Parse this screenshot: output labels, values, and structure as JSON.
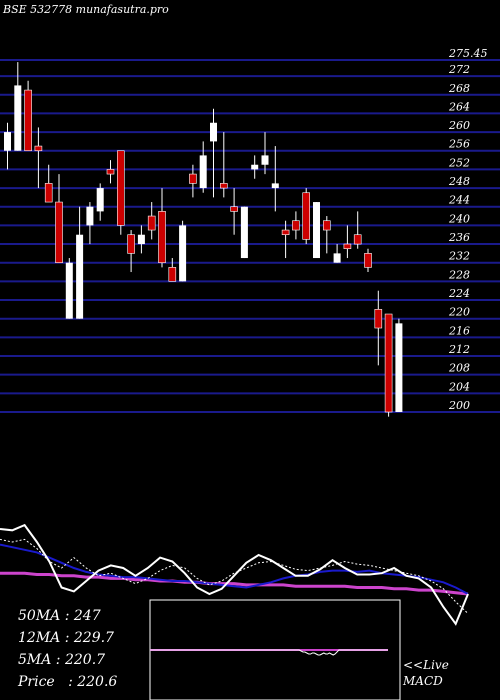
{
  "chart_data": {
    "type": "candlestick",
    "title": "BSE 532778 munafasutra.pro",
    "y_ticks": [
      "275.45",
      "272",
      "268",
      "264",
      "260",
      "256",
      "252",
      "248",
      "244",
      "240",
      "236",
      "232",
      "228",
      "224",
      "220",
      "216",
      "212",
      "208",
      "204",
      "200"
    ],
    "ylim": [
      200,
      275.45
    ],
    "candles": [
      {
        "open": 260,
        "close": 256,
        "high": 262,
        "low": 252,
        "color": "white"
      },
      {
        "open": 270,
        "close": 256,
        "high": 275,
        "low": 256,
        "color": "white"
      },
      {
        "open": 269,
        "close": 256,
        "high": 271,
        "low": 256,
        "color": "red"
      },
      {
        "open": 257,
        "close": 256,
        "high": 261,
        "low": 248,
        "color": "red"
      },
      {
        "open": 249,
        "close": 245,
        "high": 253,
        "low": 245,
        "color": "red"
      },
      {
        "open": 245,
        "close": 232,
        "high": 251,
        "low": 232,
        "color": "red"
      },
      {
        "open": 232,
        "close": 220,
        "high": 233,
        "low": 220,
        "color": "white"
      },
      {
        "open": 238,
        "close": 220,
        "high": 244,
        "low": 220,
        "color": "white"
      },
      {
        "open": 244,
        "close": 240,
        "high": 245,
        "low": 236,
        "color": "white"
      },
      {
        "open": 248,
        "close": 243,
        "high": 249,
        "low": 241,
        "color": "white"
      },
      {
        "open": 252,
        "close": 251,
        "high": 254,
        "low": 249,
        "color": "red"
      },
      {
        "open": 256,
        "close": 240,
        "high": 256,
        "low": 238,
        "color": "red"
      },
      {
        "open": 238,
        "close": 234,
        "high": 239,
        "low": 230,
        "color": "red"
      },
      {
        "open": 238,
        "close": 236,
        "high": 240,
        "low": 234,
        "color": "white"
      },
      {
        "open": 242,
        "close": 239,
        "high": 245,
        "low": 237,
        "color": "red"
      },
      {
        "open": 243,
        "close": 232,
        "high": 248,
        "low": 231,
        "color": "red"
      },
      {
        "open": 231,
        "close": 228,
        "high": 233,
        "low": 228,
        "color": "red"
      },
      {
        "open": 228,
        "close": 240,
        "high": 241,
        "low": 228,
        "color": "white"
      },
      {
        "open": 251,
        "close": 249,
        "high": 253,
        "low": 246,
        "color": "red"
      },
      {
        "open": 255,
        "close": 248,
        "high": 258,
        "low": 247,
        "color": "white"
      },
      {
        "open": 258,
        "close": 262,
        "high": 265,
        "low": 246,
        "color": "white"
      },
      {
        "open": 249,
        "close": 248,
        "high": 260,
        "low": 246,
        "color": "red"
      },
      {
        "open": 244,
        "close": 243,
        "high": 248,
        "low": 238,
        "color": "red"
      },
      {
        "open": 233,
        "close": 244,
        "high": 244,
        "low": 233,
        "color": "white"
      },
      {
        "open": 253,
        "close": 252,
        "high": 255,
        "low": 250,
        "color": "white"
      },
      {
        "open": 253,
        "close": 255,
        "high": 260,
        "low": 251,
        "color": "white"
      },
      {
        "open": 248,
        "close": 249,
        "high": 257,
        "low": 243,
        "color": "white"
      },
      {
        "open": 239,
        "close": 238,
        "high": 241,
        "low": 233,
        "color": "red"
      },
      {
        "open": 241,
        "close": 239,
        "high": 243,
        "low": 237,
        "color": "red"
      },
      {
        "open": 247,
        "close": 237,
        "high": 248,
        "low": 236,
        "color": "red"
      },
      {
        "open": 245,
        "close": 233,
        "high": 245,
        "low": 233,
        "color": "white"
      },
      {
        "open": 241,
        "close": 239,
        "high": 242,
        "low": 234,
        "color": "red"
      },
      {
        "open": 234,
        "close": 232,
        "high": 236,
        "low": 232,
        "color": "white"
      },
      {
        "open": 236,
        "close": 235,
        "high": 240,
        "low": 233,
        "color": "red"
      },
      {
        "open": 238,
        "close": 236,
        "high": 243,
        "low": 235,
        "color": "red"
      },
      {
        "open": 234,
        "close": 231,
        "high": 235,
        "low": 230,
        "color": "red"
      },
      {
        "open": 222,
        "close": 218,
        "high": 226,
        "low": 210,
        "color": "red"
      },
      {
        "open": 221,
        "close": 200,
        "high": 221,
        "low": 199,
        "color": "red"
      },
      {
        "open": 219,
        "close": 200,
        "high": 220,
        "low": 200,
        "color": "white"
      }
    ],
    "ma_panel": {
      "ma50": [
        64,
        64,
        64,
        65,
        65,
        66,
        66,
        67,
        67,
        68,
        68,
        69,
        69,
        70,
        70,
        71,
        71,
        72,
        72,
        72,
        73,
        73,
        73,
        73,
        74,
        74,
        74,
        74,
        74,
        75,
        75,
        75,
        76,
        76,
        77,
        77,
        78,
        79,
        80
      ],
      "ma12": [
        42,
        44,
        46,
        48,
        52,
        56,
        60,
        63,
        65,
        66,
        67,
        67,
        68,
        69,
        70,
        70,
        71,
        72,
        73,
        74,
        75,
        73,
        71,
        68,
        66,
        65,
        63,
        62,
        62,
        63,
        62,
        64,
        65,
        66,
        67,
        69,
        71,
        75,
        80
      ],
      "ma5": [
        38,
        40,
        38,
        45,
        55,
        60,
        52,
        60,
        66,
        64,
        68,
        72,
        68,
        62,
        58,
        60,
        68,
        73,
        70,
        64,
        60,
        56,
        55,
        58,
        61,
        62,
        60,
        58,
        55,
        57,
        58,
        60,
        62,
        64,
        66,
        70,
        76,
        86,
        95
      ],
      "price": [
        30,
        31,
        27,
        40,
        55,
        75,
        78,
        70,
        62,
        58,
        60,
        66,
        60,
        52,
        55,
        64,
        75,
        80,
        76,
        66,
        56,
        50,
        54,
        60,
        66,
        66,
        61,
        54,
        60,
        65,
        65,
        64,
        60,
        66,
        68,
        75,
        90,
        103,
        80
      ],
      "colors": {
        "ma50": "#cc44cc",
        "ma12": "#1a1acc",
        "ma5": "#ffffff",
        "price": "#ffffff"
      }
    },
    "macd": {
      "line": [
        0,
        0,
        0,
        0,
        0,
        0,
        0,
        0,
        0,
        0,
        0,
        0,
        0,
        0,
        0,
        0,
        0,
        0,
        0,
        0,
        0,
        0,
        0,
        0,
        0,
        0,
        0,
        0,
        0,
        0,
        0,
        0,
        0,
        0,
        0,
        0,
        0,
        0,
        0,
        0,
        0,
        0,
        0,
        0,
        0,
        0,
        0,
        0,
        0,
        0,
        0,
        0,
        0,
        0,
        0,
        0,
        0,
        0,
        0,
        0,
        0,
        0,
        0,
        0,
        0,
        0,
        0,
        0,
        0,
        0,
        0,
        0,
        0,
        0,
        0,
        0,
        0,
        0,
        0,
        0,
        -1,
        -2,
        -2,
        -3,
        -4,
        -4,
        -3,
        -3,
        -4,
        -5,
        -5,
        -4,
        -3,
        -4,
        -4,
        -3,
        -4,
        -5,
        -4,
        -2,
        0,
        0,
        0,
        0,
        0,
        0,
        0,
        0,
        0,
        0,
        0,
        0,
        0,
        0,
        0,
        0,
        0,
        0,
        0,
        0,
        0,
        0,
        0,
        0,
        0,
        0,
        0
      ],
      "colors": {
        "line": "#ffffff",
        "signal": "#cc44cc"
      }
    }
  },
  "stats": {
    "ma50": "50MA : 247",
    "ma12": "12MA : 229.7",
    "ma5": "5MA : 220.7",
    "price": "Price   : 220.6"
  },
  "live": {
    "line1": "<<Live",
    "line2": "MACD"
  },
  "colors": {
    "grid": "#1a1a8c",
    "up": "#ffffff",
    "down": "#cc0000"
  }
}
